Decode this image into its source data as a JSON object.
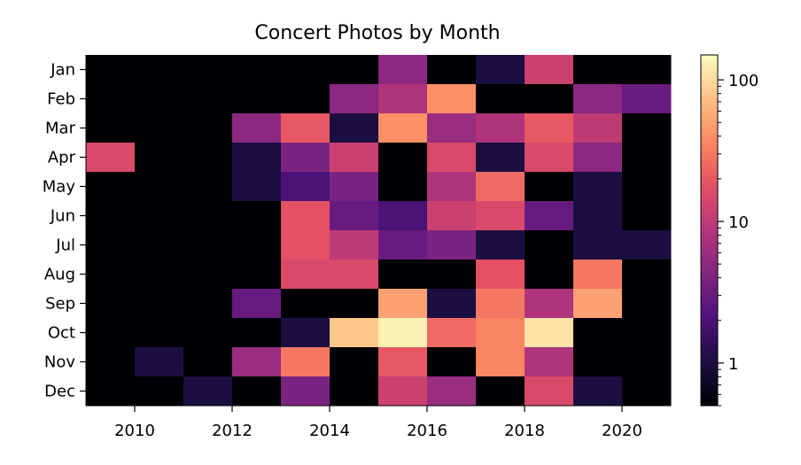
{
  "chart_data": {
    "type": "heatmap",
    "title": "Concert Photos by Month",
    "xlabel": "",
    "ylabel": "",
    "colormap": "magma",
    "color_scale": "log",
    "color_range": [
      0.5,
      150
    ],
    "grid": false,
    "x_range": [
      2009,
      2021
    ],
    "x": [
      2009,
      2010,
      2011,
      2012,
      2013,
      2014,
      2015,
      2016,
      2017,
      2018,
      2019,
      2020
    ],
    "x_ticks": [
      2010,
      2012,
      2014,
      2016,
      2018,
      2020
    ],
    "y_categories": [
      "Jan",
      "Feb",
      "Mar",
      "Apr",
      "May",
      "Jun",
      "Jul",
      "Aug",
      "Sep",
      "Oct",
      "Nov",
      "Dec"
    ],
    "values": [
      [
        0,
        0,
        0,
        0,
        0,
        0,
        5,
        0,
        1,
        12,
        0,
        0
      ],
      [
        0,
        0,
        0,
        0,
        0,
        5,
        8,
        40,
        0,
        0,
        5,
        3
      ],
      [
        0,
        0,
        0,
        5,
        20,
        1,
        40,
        6,
        8,
        20,
        10,
        0
      ],
      [
        15,
        0,
        0,
        1,
        4,
        12,
        0,
        15,
        1,
        15,
        5,
        0
      ],
      [
        0,
        0,
        0,
        1,
        2,
        4,
        0,
        8,
        25,
        0,
        1,
        0
      ],
      [
        0,
        0,
        0,
        0,
        18,
        3,
        2,
        12,
        15,
        3,
        1,
        0
      ],
      [
        0,
        0,
        0,
        0,
        18,
        10,
        3,
        4,
        1,
        0,
        1,
        1
      ],
      [
        0,
        0,
        0,
        0,
        15,
        15,
        0,
        0,
        18,
        0,
        30,
        0
      ],
      [
        0,
        0,
        0,
        3,
        0,
        0,
        50,
        1,
        30,
        8,
        50,
        0
      ],
      [
        0,
        0,
        0,
        0,
        1,
        80,
        130,
        25,
        35,
        110,
        0,
        0
      ],
      [
        0,
        1,
        0,
        6,
        30,
        0,
        20,
        0,
        35,
        8,
        0,
        0
      ],
      [
        0,
        0,
        1,
        0,
        4,
        0,
        12,
        6,
        0,
        15,
        1,
        0
      ]
    ],
    "colorbar_ticks": [
      1,
      10,
      100
    ]
  }
}
